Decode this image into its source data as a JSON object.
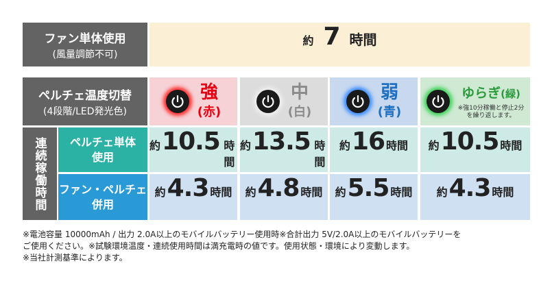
{
  "fan_only": {
    "label": "ファン単体使用",
    "note": "(風量調節不可)",
    "prefix": "約",
    "value": "7",
    "unit": "時間"
  },
  "peltier_modes": {
    "label": "ペルチェ温度切替",
    "note": "(4段階/LED発光色)",
    "modes": [
      {
        "name": "強",
        "color_label": "(赤)"
      },
      {
        "name": "中",
        "color_label": "(白)"
      },
      {
        "name": "弱",
        "color_label": "(青)"
      },
      {
        "name": "ゆらぎ",
        "color_label": "(緑)",
        "note": "※強10分稼働と停止2分\nを繰り返します。"
      }
    ]
  },
  "runtime": {
    "label": "連続稼働時間",
    "rows": [
      {
        "label": "ペルチェ単体\n使用",
        "values": [
          "10.5",
          "13.5",
          "16",
          "10.5"
        ]
      },
      {
        "label": "ファン・ペルチェ\n併用",
        "values": [
          "4.3",
          "4.8",
          "5.5",
          "4.3"
        ]
      }
    ]
  },
  "footnotes": [
    "※電池容量 10000mAh / 出力 2.0A以上のモバイルバッテリー使用時※合計出力 5V/2.0A以上のモバイルバッテリーを",
    "ご使用ください。※試験環境温度・連続使用時間は満充電時の値です。使用状態・環境により変動します。",
    "※当社計測基準によります。"
  ]
}
